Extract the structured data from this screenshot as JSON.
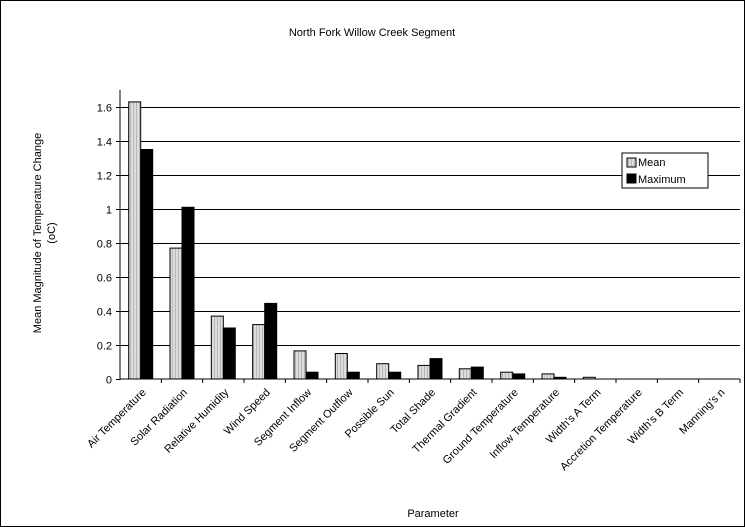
{
  "chart_data": {
    "type": "bar",
    "title": "North Fork Willow Creek Segment",
    "xlabel": "Parameter",
    "ylabel_line1": "Mean Magnitude of Temperature Change",
    "ylabel_line2": "(oC)",
    "ylim": [
      0,
      1.7
    ],
    "yticks": [
      0,
      0.2,
      0.4,
      0.6,
      0.8,
      1,
      1.2,
      1.4,
      1.6
    ],
    "ytick_labels": [
      "0",
      "0.2",
      "0.4",
      "0.6",
      "0.8",
      "1",
      "1.2",
      "1.4",
      "1.6"
    ],
    "grid": true,
    "legend_position": "right",
    "categories": [
      "Air Temperature",
      "Solar Radiation",
      "Relative Humidity",
      "Wind Speed",
      "Segment Inflow",
      "Segment Outflow",
      "Possible Sun",
      "Total Shade",
      "Thermal Gradient",
      "Ground Temperature",
      "Inflow Temperature",
      "Width's A Term",
      "Accretion Temperature",
      "Width's B Term",
      "Manning's n"
    ],
    "series": [
      {
        "name": "Mean",
        "color": "#d9d9d9",
        "values": [
          1.63,
          0.77,
          0.37,
          0.32,
          0.165,
          0.15,
          0.09,
          0.08,
          0.06,
          0.04,
          0.03,
          0.01,
          0,
          0,
          0
        ]
      },
      {
        "name": "Maximum",
        "color": "#000000",
        "values": [
          1.35,
          1.01,
          0.3,
          0.445,
          0.04,
          0.04,
          0.04,
          0.12,
          0.07,
          0.03,
          0.01,
          0,
          0,
          0,
          0
        ]
      }
    ]
  }
}
